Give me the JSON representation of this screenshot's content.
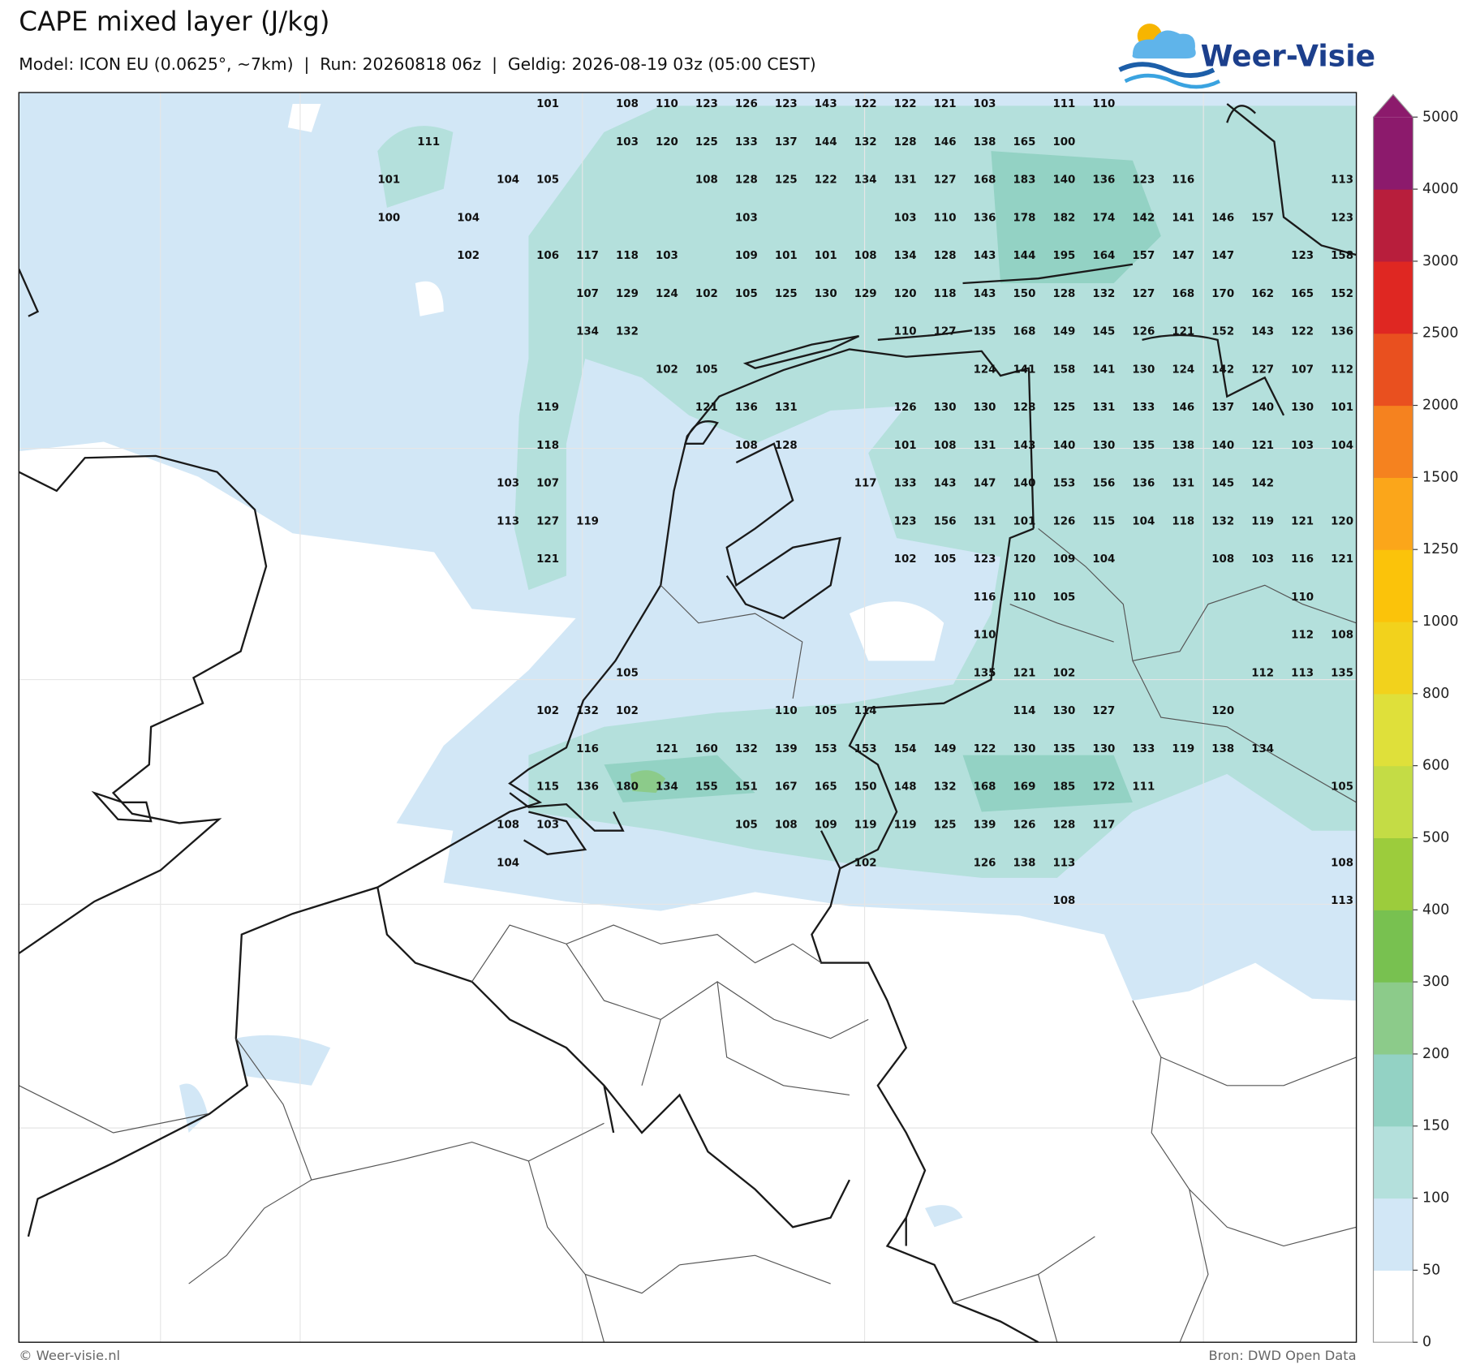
{
  "header": {
    "title": "CAPE mixed layer (J/kg)",
    "subtitle": "Model: ICON EU (0.0625°, ~7km)  |  Run: 20260818 06z  |  Geldig: 2026-08-19 03z (05:00 CEST)",
    "logo": "Weer-Visie"
  },
  "map": {
    "grid": [
      [
        null,
        null,
        null,
        null,
        101,
        null,
        108,
        110,
        123,
        126,
        123,
        143,
        122,
        122,
        121,
        103,
        null,
        111,
        110,
        null,
        null,
        null,
        null,
        null,
        null
      ],
      [
        null,
        111,
        null,
        null,
        null,
        null,
        103,
        120,
        125,
        133,
        137,
        144,
        132,
        128,
        146,
        138,
        165,
        100,
        null,
        null,
        null,
        null,
        null,
        null,
        null
      ],
      [
        101,
        null,
        null,
        104,
        105,
        null,
        null,
        null,
        108,
        128,
        125,
        122,
        134,
        131,
        127,
        168,
        183,
        140,
        136,
        123,
        116,
        null,
        null,
        null,
        113
      ],
      [
        100,
        null,
        104,
        null,
        null,
        null,
        null,
        null,
        null,
        103,
        null,
        null,
        null,
        103,
        110,
        136,
        178,
        182,
        174,
        142,
        141,
        146,
        157,
        null,
        123
      ],
      [
        null,
        null,
        102,
        null,
        106,
        117,
        118,
        103,
        null,
        109,
        101,
        101,
        108,
        134,
        128,
        143,
        144,
        195,
        164,
        157,
        147,
        147,
        null,
        123,
        158
      ],
      [
        null,
        null,
        null,
        null,
        null,
        107,
        129,
        124,
        102,
        105,
        125,
        130,
        129,
        120,
        118,
        143,
        150,
        128,
        132,
        127,
        168,
        170,
        162,
        165,
        152
      ],
      [
        null,
        null,
        null,
        null,
        null,
        134,
        132,
        null,
        null,
        null,
        null,
        null,
        null,
        110,
        127,
        135,
        168,
        149,
        145,
        126,
        121,
        152,
        143,
        122,
        136
      ],
      [
        null,
        null,
        null,
        null,
        null,
        null,
        null,
        102,
        105,
        null,
        null,
        null,
        null,
        null,
        null,
        124,
        141,
        158,
        141,
        130,
        124,
        142,
        127,
        107,
        112
      ],
      [
        null,
        null,
        null,
        null,
        119,
        null,
        null,
        null,
        121,
        136,
        131,
        null,
        null,
        126,
        130,
        130,
        128,
        125,
        131,
        133,
        146,
        137,
        140,
        130,
        101
      ],
      [
        null,
        null,
        null,
        null,
        118,
        null,
        null,
        null,
        null,
        108,
        128,
        null,
        null,
        101,
        108,
        131,
        143,
        140,
        130,
        135,
        138,
        140,
        121,
        103,
        104
      ],
      [
        null,
        null,
        null,
        103,
        107,
        null,
        null,
        null,
        null,
        null,
        null,
        null,
        117,
        133,
        143,
        147,
        140,
        153,
        156,
        136,
        131,
        145,
        142,
        null,
        null
      ],
      [
        null,
        null,
        null,
        113,
        127,
        119,
        null,
        null,
        null,
        null,
        null,
        null,
        null,
        123,
        156,
        131,
        101,
        126,
        115,
        104,
        118,
        132,
        119,
        121,
        120
      ],
      [
        null,
        null,
        null,
        null,
        121,
        null,
        null,
        null,
        null,
        null,
        null,
        null,
        null,
        102,
        105,
        123,
        120,
        109,
        104,
        null,
        null,
        108,
        103,
        116,
        121
      ],
      [
        null,
        null,
        null,
        null,
        null,
        null,
        null,
        null,
        null,
        null,
        null,
        null,
        null,
        null,
        null,
        116,
        110,
        105,
        null,
        null,
        null,
        null,
        null,
        110,
        null
      ],
      [
        null,
        null,
        null,
        null,
        null,
        null,
        null,
        null,
        null,
        null,
        null,
        null,
        null,
        null,
        null,
        110,
        null,
        null,
        null,
        null,
        null,
        null,
        null,
        112,
        108
      ],
      [
        null,
        null,
        null,
        null,
        null,
        null,
        105,
        null,
        null,
        null,
        null,
        null,
        null,
        null,
        null,
        135,
        121,
        102,
        null,
        null,
        null,
        null,
        112,
        113,
        135
      ],
      [
        null,
        null,
        null,
        null,
        102,
        132,
        102,
        null,
        null,
        null,
        110,
        105,
        114,
        null,
        null,
        null,
        114,
        130,
        127,
        null,
        null,
        120,
        null,
        null,
        null
      ],
      [
        null,
        null,
        null,
        null,
        null,
        116,
        null,
        121,
        160,
        132,
        139,
        153,
        153,
        154,
        149,
        122,
        130,
        135,
        130,
        133,
        119,
        138,
        134,
        null,
        null
      ],
      [
        null,
        null,
        null,
        null,
        115,
        136,
        180,
        134,
        155,
        151,
        167,
        165,
        150,
        148,
        132,
        168,
        169,
        185,
        172,
        111,
        null,
        null,
        null,
        null,
        105
      ],
      [
        null,
        null,
        null,
        108,
        103,
        null,
        null,
        null,
        null,
        105,
        108,
        109,
        119,
        119,
        125,
        139,
        126,
        128,
        117,
        null,
        null,
        null,
        null,
        null,
        null
      ],
      [
        null,
        null,
        null,
        104,
        null,
        null,
        null,
        null,
        null,
        null,
        null,
        null,
        102,
        null,
        null,
        126,
        138,
        113,
        null,
        null,
        null,
        null,
        null,
        null,
        108
      ],
      [
        null,
        null,
        null,
        null,
        null,
        null,
        null,
        null,
        null,
        null,
        null,
        null,
        null,
        null,
        null,
        null,
        null,
        108,
        null,
        null,
        null,
        null,
        null,
        null,
        113
      ]
    ]
  },
  "colorbar": {
    "levels": [
      0,
      50,
      100,
      150,
      200,
      300,
      400,
      500,
      600,
      800,
      1000,
      1250,
      1500,
      2000,
      2500,
      3000,
      4000,
      5000
    ],
    "colors": [
      "#ffffff",
      "#d2e7f6",
      "#b4e0dc",
      "#93d2c4",
      "#8ccb8a",
      "#78c150",
      "#9ccc3c",
      "#c4dc45",
      "#dfe03a",
      "#f2d21c",
      "#fbc30a",
      "#fba61a",
      "#f5821f",
      "#e9501f",
      "#df2722",
      "#b81e3c",
      "#8c1a6c"
    ],
    "extend_color": "#8c1a6c"
  },
  "footer": {
    "left": "© Weer-visie.nl",
    "right": "Bron: DWD Open Data"
  }
}
